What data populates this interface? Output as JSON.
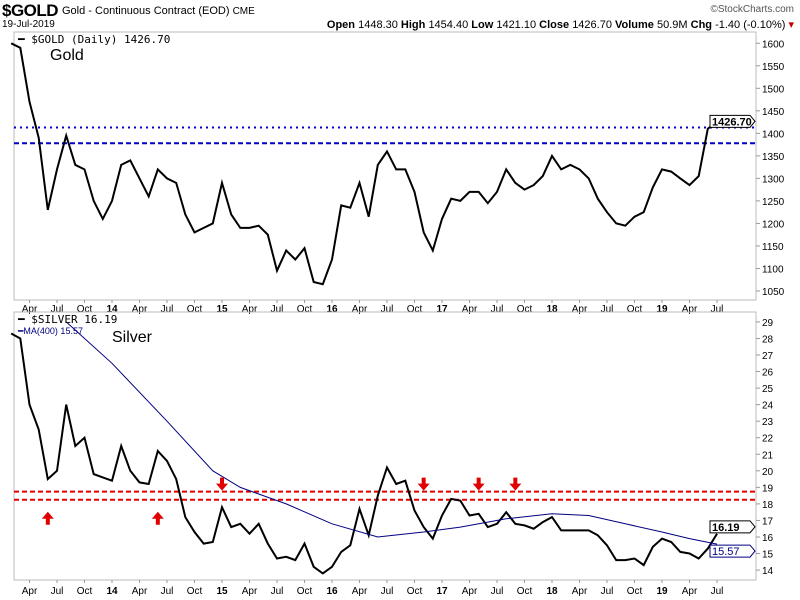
{
  "header": {
    "symbol": "$GOLD",
    "name": "Gold - Continuous Contract (EOD)",
    "exchange": "CME",
    "date": "19-Jul-2019",
    "brand": "©StockCharts.com",
    "open_label": "Open",
    "open": "1448.30",
    "high_label": "High",
    "high": "1454.40",
    "low_label": "Low",
    "low": "1421.10",
    "close_label": "Close",
    "close": "1426.70",
    "volume_label": "Volume",
    "volume": "50.9M",
    "chg_label": "Chg",
    "chg": "-1.40 (-0.10%)",
    "chg_color": "#c00000"
  },
  "chart_data": [
    {
      "type": "line",
      "legend": "$GOLD (Daily) 1426.70",
      "annotation": "Gold",
      "last_value_tag": "1426.70",
      "ylim": [
        1030,
        1625
      ],
      "yticks": [
        1050,
        1100,
        1150,
        1200,
        1250,
        1300,
        1350,
        1400,
        1450,
        1500,
        1550,
        1600
      ],
      "xticks": [
        "Apr",
        "Jul",
        "Oct",
        "14",
        "Apr",
        "Jul",
        "Oct",
        "15",
        "Apr",
        "Jul",
        "Oct",
        "16",
        "Apr",
        "Jul",
        "Oct",
        "17",
        "Apr",
        "Jul",
        "Oct",
        "18",
        "Apr",
        "Jul",
        "Oct",
        "19",
        "Apr",
        "Jul"
      ],
      "hlines": [
        {
          "value": 1413,
          "style": "dotted",
          "color": "#0000cc"
        },
        {
          "value": 1378,
          "style": "dashed",
          "color": "#0000cc"
        }
      ],
      "series": [
        {
          "color": "#000000",
          "x": [
            "2013-02",
            "2013-03",
            "2013-04",
            "2013-05",
            "2013-06",
            "2013-07",
            "2013-08",
            "2013-09",
            "2013-10",
            "2013-11",
            "2013-12",
            "2014-01",
            "2014-02",
            "2014-03",
            "2014-04",
            "2014-05",
            "2014-06",
            "2014-07",
            "2014-08",
            "2014-09",
            "2014-10",
            "2014-11",
            "2014-12",
            "2015-01",
            "2015-02",
            "2015-03",
            "2015-04",
            "2015-05",
            "2015-06",
            "2015-07",
            "2015-08",
            "2015-09",
            "2015-10",
            "2015-11",
            "2015-12",
            "2016-01",
            "2016-02",
            "2016-03",
            "2016-04",
            "2016-05",
            "2016-06",
            "2016-07",
            "2016-08",
            "2016-09",
            "2016-10",
            "2016-11",
            "2016-12",
            "2017-01",
            "2017-02",
            "2017-03",
            "2017-04",
            "2017-05",
            "2017-06",
            "2017-07",
            "2017-08",
            "2017-09",
            "2017-10",
            "2017-11",
            "2017-12",
            "2018-01",
            "2018-02",
            "2018-03",
            "2018-04",
            "2018-05",
            "2018-06",
            "2018-07",
            "2018-08",
            "2018-09",
            "2018-10",
            "2018-11",
            "2018-12",
            "2019-01",
            "2019-02",
            "2019-03",
            "2019-04",
            "2019-05",
            "2019-06",
            "2019-07"
          ],
          "values": [
            1600,
            1590,
            1470,
            1390,
            1230,
            1320,
            1395,
            1330,
            1320,
            1250,
            1210,
            1250,
            1330,
            1340,
            1300,
            1260,
            1320,
            1300,
            1290,
            1220,
            1180,
            1190,
            1200,
            1290,
            1220,
            1190,
            1190,
            1195,
            1175,
            1095,
            1140,
            1120,
            1145,
            1070,
            1065,
            1120,
            1240,
            1235,
            1290,
            1215,
            1330,
            1360,
            1320,
            1320,
            1270,
            1180,
            1140,
            1210,
            1255,
            1250,
            1270,
            1270,
            1245,
            1270,
            1320,
            1290,
            1275,
            1285,
            1305,
            1350,
            1320,
            1330,
            1320,
            1300,
            1255,
            1225,
            1200,
            1195,
            1215,
            1225,
            1280,
            1320,
            1315,
            1300,
            1285,
            1305,
            1410,
            1426.7
          ]
        }
      ]
    },
    {
      "type": "line",
      "legend": "$SILVER 16.19",
      "ma_legend": "MA(400) 15.57",
      "annotation": "Silver",
      "last_value_tag": "16.19",
      "ma_value_tag": "15.57",
      "ylim": [
        13.4,
        29.6
      ],
      "yticks": [
        14,
        15,
        16,
        17,
        18,
        19,
        20,
        21,
        22,
        23,
        24,
        25,
        26,
        27,
        28,
        29
      ],
      "xticks": [
        "Apr",
        "Jul",
        "Oct",
        "15",
        "Apr",
        "Jul",
        "Oct",
        "16",
        "Apr",
        "Jul",
        "Oct",
        "17",
        "Apr",
        "Jul",
        "Oct",
        "18",
        "Apr",
        "Jul",
        "Oct",
        "19",
        "Apr",
        "Jul"
      ],
      "xticks_full": [
        "Apr",
        "Jul",
        "Oct",
        "14",
        "Apr",
        "Jul",
        "Oct",
        "15",
        "Apr",
        "Jul",
        "Oct",
        "16",
        "Apr",
        "Jul",
        "Oct",
        "17",
        "Apr",
        "Jul",
        "Oct",
        "18",
        "Apr",
        "Jul",
        "Oct",
        "19",
        "Apr",
        "Jul"
      ],
      "hlines": [
        {
          "value": 18.74,
          "style": "dashed",
          "color": "#e00000"
        },
        {
          "value": 18.25,
          "style": "dashed",
          "color": "#e00000"
        }
      ],
      "arrows": [
        {
          "x": "2013-06",
          "dir": "up"
        },
        {
          "x": "2014-06",
          "dir": "up"
        },
        {
          "x": "2015-01",
          "dir": "down"
        },
        {
          "x": "2016-11",
          "dir": "down"
        },
        {
          "x": "2017-05",
          "dir": "down"
        },
        {
          "x": "2017-09",
          "dir": "down"
        }
      ],
      "series": [
        {
          "name": "$SILVER",
          "color": "#000000",
          "x": [
            "2013-02",
            "2013-03",
            "2013-04",
            "2013-05",
            "2013-06",
            "2013-07",
            "2013-08",
            "2013-09",
            "2013-10",
            "2013-11",
            "2013-12",
            "2014-01",
            "2014-02",
            "2014-03",
            "2014-04",
            "2014-05",
            "2014-06",
            "2014-07",
            "2014-08",
            "2014-09",
            "2014-10",
            "2014-11",
            "2014-12",
            "2015-01",
            "2015-02",
            "2015-03",
            "2015-04",
            "2015-05",
            "2015-06",
            "2015-07",
            "2015-08",
            "2015-09",
            "2015-10",
            "2015-11",
            "2015-12",
            "2016-01",
            "2016-02",
            "2016-03",
            "2016-04",
            "2016-05",
            "2016-06",
            "2016-07",
            "2016-08",
            "2016-09",
            "2016-10",
            "2016-11",
            "2016-12",
            "2017-01",
            "2017-02",
            "2017-03",
            "2017-04",
            "2017-05",
            "2017-06",
            "2017-07",
            "2017-08",
            "2017-09",
            "2017-10",
            "2017-11",
            "2017-12",
            "2018-01",
            "2018-02",
            "2018-03",
            "2018-04",
            "2018-05",
            "2018-06",
            "2018-07",
            "2018-08",
            "2018-09",
            "2018-10",
            "2018-11",
            "2018-12",
            "2019-01",
            "2019-02",
            "2019-03",
            "2019-04",
            "2019-05",
            "2019-06",
            "2019-07"
          ],
          "values": [
            28.3,
            28,
            24,
            22.5,
            19.5,
            20,
            24,
            21.5,
            22,
            19.8,
            19.6,
            19.4,
            21.5,
            20,
            19.3,
            19.2,
            21.2,
            20.6,
            19.5,
            17.2,
            16.3,
            15.6,
            15.7,
            17.8,
            16.6,
            16.8,
            16.2,
            16.8,
            15.6,
            14.7,
            14.8,
            14.6,
            15.6,
            14.2,
            13.8,
            14.2,
            15.1,
            15.5,
            17.7,
            16.1,
            18.5,
            20.2,
            19.2,
            19.4,
            17.6,
            16.6,
            15.9,
            17.3,
            18.3,
            18.2,
            17.3,
            17.4,
            16.6,
            16.8,
            17.5,
            16.8,
            16.7,
            16.5,
            16.9,
            17.2,
            16.4,
            16.4,
            16.4,
            16.4,
            16.1,
            15.5,
            14.6,
            14.6,
            14.7,
            14.3,
            15.4,
            15.9,
            15.7,
            15.1,
            15,
            14.7,
            15.3,
            16.19
          ]
        },
        {
          "name": "MA(400)",
          "color": "#000080",
          "x": [
            "2013-08",
            "2014-01",
            "2014-07",
            "2014-12",
            "2015-03",
            "2015-08",
            "2016-01",
            "2016-06",
            "2016-11",
            "2017-03",
            "2017-08",
            "2018-01",
            "2018-05",
            "2018-09",
            "2019-01",
            "2019-04",
            "2019-07"
          ],
          "values": [
            29,
            26.5,
            23,
            20,
            19,
            18,
            16.8,
            16,
            16.3,
            16.6,
            17.1,
            17.4,
            17.3,
            16.8,
            16.3,
            15.9,
            15.57
          ]
        }
      ]
    }
  ]
}
